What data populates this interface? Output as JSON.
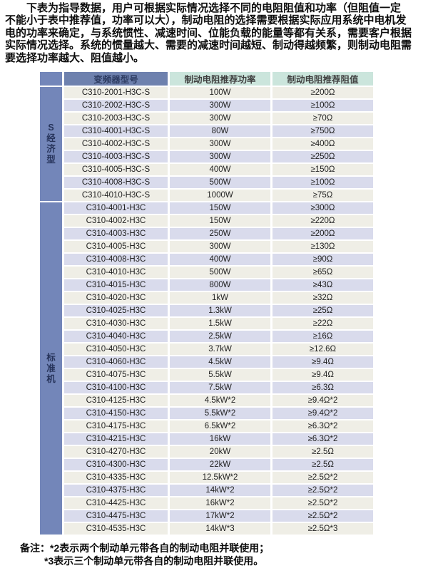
{
  "intro": {
    "lines": [
      "下表为指导数据，用户可根据实际情况选择不同的电阻阻值和功率（但阻值一定",
      "不能小于表中推荐值，功率可以大），制动电阻的选择需要根据实际应用系统中电机发",
      "电的功率来确定，与系统惯性、减速时间、位能负载的能量等都有关系，需要客户根据",
      "实际情况选择。系统的惯量越大、需要的减速时间越短、制动得越频繁，则制动电阻需",
      "要选择功率越大、阻值越小。"
    ]
  },
  "table": {
    "headers": {
      "group": "",
      "model": "变频器型号",
      "power": "制动电阻推荐功率",
      "resistance": "制动电阻推荐阻值"
    },
    "groups": [
      {
        "label": "S经济型",
        "rows": [
          {
            "model": "C310-2001-H3C-S",
            "power": "100W",
            "resistance": "≥200Ω"
          },
          {
            "model": "C310-2002-H3C-S",
            "power": "300W",
            "resistance": "≥100Ω"
          },
          {
            "model": "C310-2003-H3C-S",
            "power": "300W",
            "resistance": "≥70Ω"
          },
          {
            "model": "C310-4001-H3C-S",
            "power": "80W",
            "resistance": "≥750Ω"
          },
          {
            "model": "C310-4002-H3C-S",
            "power": "300W",
            "resistance": "≥400Ω"
          },
          {
            "model": "C310-4003-H3C-S",
            "power": "300W",
            "resistance": "≥250Ω"
          },
          {
            "model": "C310-4005-H3C-S",
            "power": "400W",
            "resistance": "≥150Ω"
          },
          {
            "model": "C310-4008-H3C-S",
            "power": "500W",
            "resistance": "≥100Ω"
          },
          {
            "model": "C310-4010-H3C-S",
            "power": "1000W",
            "resistance": "≥75Ω"
          }
        ]
      },
      {
        "label": "标准机",
        "rows": [
          {
            "model": "C310-4001-H3C",
            "power": "150W",
            "resistance": "≥300Ω"
          },
          {
            "model": "C310-4002-H3C",
            "power": "150W",
            "resistance": "≥220Ω"
          },
          {
            "model": "C310-4003-H3C",
            "power": "250W",
            "resistance": "≥200Ω"
          },
          {
            "model": "C310-4005-H3C",
            "power": "300W",
            "resistance": "≥130Ω"
          },
          {
            "model": "C310-4008-H3C",
            "power": "400W",
            "resistance": "≥90Ω"
          },
          {
            "model": "C310-4010-H3C",
            "power": "500W",
            "resistance": "≥65Ω"
          },
          {
            "model": "C310-4015-H3C",
            "power": "800W",
            "resistance": "≥43Ω"
          },
          {
            "model": "C310-4020-H3C",
            "power": "1kW",
            "resistance": "≥32Ω"
          },
          {
            "model": "C310-4025-H3C",
            "power": "1.3kW",
            "resistance": "≥25Ω"
          },
          {
            "model": "C310-4030-H3C",
            "power": "1.5kW",
            "resistance": "≥22Ω"
          },
          {
            "model": "C310-4040-H3C",
            "power": "2.5kW",
            "resistance": "≥16Ω"
          },
          {
            "model": "C310-4050-H3C",
            "power": "3.7kW",
            "resistance": "≥12.6Ω"
          },
          {
            "model": "C310-4060-H3C",
            "power": "4.5kW",
            "resistance": "≥9.4Ω"
          },
          {
            "model": "C310-4075-H3C",
            "power": "5.5kW",
            "resistance": "≥9.4Ω"
          },
          {
            "model": "C310-4100-H3C",
            "power": "7.5kW",
            "resistance": "≥6.3Ω"
          },
          {
            "model": "C310-4125-H3C",
            "power": "4.5kW*2",
            "resistance": "≥9.4Ω*2"
          },
          {
            "model": "C310-4150-H3C",
            "power": "5.5kW*2",
            "resistance": "≥9.4Ω*2"
          },
          {
            "model": "C310-4175-H3C",
            "power": "6.5kW*2",
            "resistance": "≥6.3Ω*2"
          },
          {
            "model": "C310-4215-H3C",
            "power": "16kW",
            "resistance": "≥6.3Ω*2"
          },
          {
            "model": "C310-4270-H3C",
            "power": "20kW",
            "resistance": "≥2.5Ω"
          },
          {
            "model": "C310-4300-H3C",
            "power": "22kW",
            "resistance": "≥2.5Ω"
          },
          {
            "model": "C310-4335-H3C",
            "power": "12.5kW*2",
            "resistance": "≥2.5Ω*2"
          },
          {
            "model": "C310-4375-H3C",
            "power": "14kW*2",
            "resistance": "≥2.5Ω*2"
          },
          {
            "model": "C310-4425-H3C",
            "power": "16kW*2",
            "resistance": "≥2.5Ω*2"
          },
          {
            "model": "C310-4475-H3C",
            "power": "17kW*2",
            "resistance": "≥2.5Ω*2"
          },
          {
            "model": "C310-4535-H3C",
            "power": "14kW*3",
            "resistance": "≥2.5Ω*3"
          }
        ]
      }
    ]
  },
  "notes": {
    "prefix": "备注：",
    "lines": [
      "*2表示两个制动单元带各自的制动电阻并联使用；",
      "*3表示三个制动单元带各自的制动电阻并联使用。"
    ]
  },
  "colors": {
    "group_cell_blue": "#7386b9",
    "model_header_blue": "#6e81ae",
    "model_header_text": "#2c3a60",
    "mint_header": "#cbe5dc",
    "row_beige": "#efeee6",
    "row_lavender": "#d9dbec"
  }
}
